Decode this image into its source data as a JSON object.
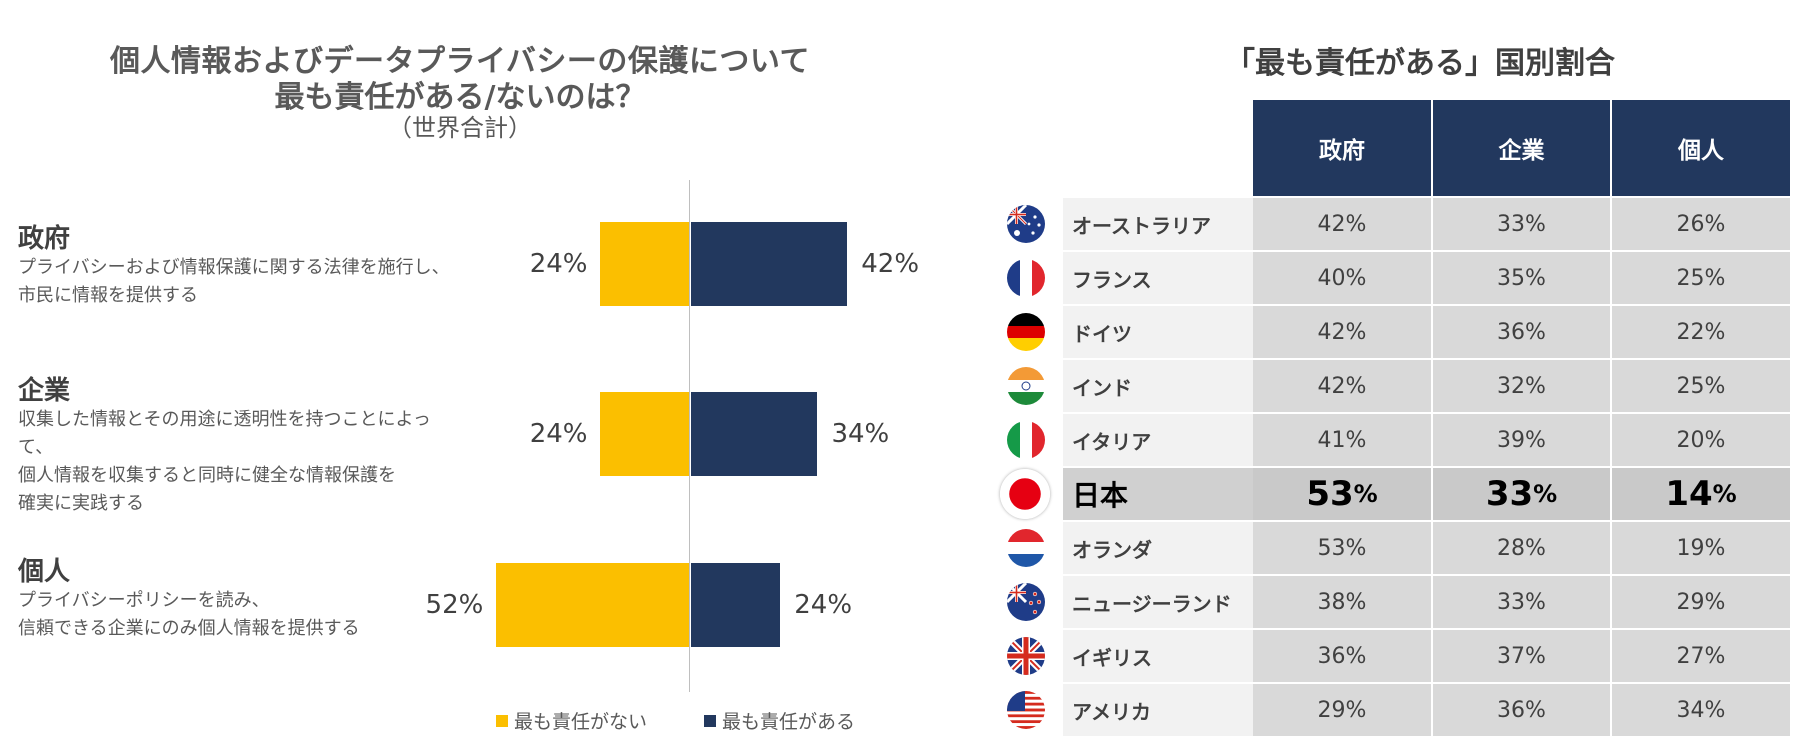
{
  "left_chart": {
    "title_line1": "個人情報およびデータプライバシーの保護について",
    "title_line2": "最も責任がある/ないのは？",
    "title_line3": "（世界合計）",
    "legend": {
      "not": "最も責任がない",
      "yes": "最も責任がある"
    },
    "colors": {
      "not": "#fbbf00",
      "yes": "#22385e"
    }
  },
  "chart_data": [
    {
      "type": "bar",
      "orientation": "horizontal-diverging",
      "categories": [
        {
          "name": "政府",
          "desc1": "プライバシーおよび情報保護に関する法律を施行し、",
          "desc2": "市民に情報を提供する",
          "desc3": ""
        },
        {
          "name": "企業",
          "desc1": "収集した情報とその用途に透明性を持つことによって、",
          "desc2": "個人情報を収集すると同時に健全な情報保護を",
          "desc3": "確実に実践する"
        },
        {
          "name": "個人",
          "desc1": "プライバシーポリシーを読み、",
          "desc2": "信頼できる企業にのみ個人情報を提供する",
          "desc3": ""
        }
      ],
      "series": [
        {
          "name": "最も責任がない",
          "values": [
            24,
            24,
            52
          ],
          "labels": [
            "24%",
            "24%",
            "52%"
          ]
        },
        {
          "name": "最も責任がある",
          "values": [
            42,
            34,
            24
          ],
          "labels": [
            "42%",
            "34%",
            "24%"
          ]
        }
      ]
    },
    {
      "type": "table",
      "title": "「最も責任がある」国別割合",
      "columns": [
        "政府",
        "企業",
        "個人"
      ],
      "rows": [
        {
          "country": "オーストラリア",
          "flag": "australia-flag-icon",
          "values": [
            "42%",
            "33%",
            "26%"
          ]
        },
        {
          "country": "フランス",
          "flag": "france-flag-icon",
          "values": [
            "40%",
            "35%",
            "25%"
          ]
        },
        {
          "country": "ドイツ",
          "flag": "germany-flag-icon",
          "values": [
            "42%",
            "36%",
            "22%"
          ]
        },
        {
          "country": "インド",
          "flag": "india-flag-icon",
          "values": [
            "42%",
            "32%",
            "25%"
          ]
        },
        {
          "country": "イタリア",
          "flag": "italy-flag-icon",
          "values": [
            "41%",
            "39%",
            "20%"
          ]
        },
        {
          "country": "日本",
          "flag": "japan-flag-icon",
          "values": [
            "53",
            "33",
            "14"
          ],
          "unit": "%",
          "highlight": true
        },
        {
          "country": "オランダ",
          "flag": "netherlands-flag-icon",
          "values": [
            "53%",
            "28%",
            "19%"
          ]
        },
        {
          "country": "ニュージーランド",
          "flag": "new-zealand-flag-icon",
          "values": [
            "38%",
            "33%",
            "29%"
          ]
        },
        {
          "country": "イギリス",
          "flag": "uk-flag-icon",
          "values": [
            "36%",
            "37%",
            "27%"
          ]
        },
        {
          "country": "アメリカ",
          "flag": "usa-flag-icon",
          "values": [
            "29%",
            "36%",
            "34%"
          ]
        }
      ]
    }
  ]
}
